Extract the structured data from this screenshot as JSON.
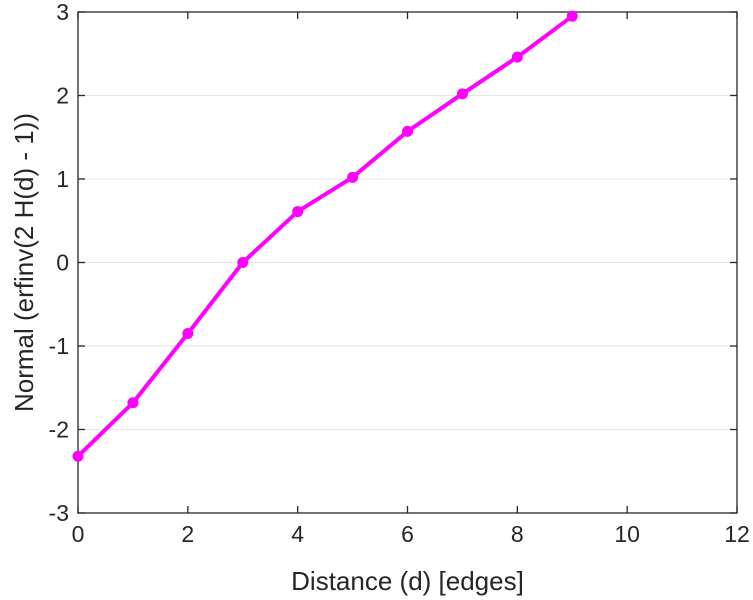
{
  "chart_data": {
    "type": "line",
    "title": "",
    "xlabel": "Distance (d) [edges]",
    "ylabel": "Normal (erfinv(2 H(d) - 1))",
    "xlim": [
      0,
      12
    ],
    "ylim": [
      -3,
      3
    ],
    "xticks": [
      0,
      2,
      4,
      6,
      8,
      10,
      12
    ],
    "yticks": [
      -3,
      -2,
      -1,
      0,
      1,
      2,
      3
    ],
    "grid": "horizontal",
    "legend": "none",
    "series": [
      {
        "color": "#ff00ff",
        "marker": "circle",
        "x": [
          0,
          1,
          2,
          3,
          4,
          5,
          6,
          7,
          8,
          9
        ],
        "y": [
          -2.32,
          -1.68,
          -0.85,
          0.0,
          0.61,
          1.02,
          1.57,
          2.02,
          2.46,
          2.95
        ]
      }
    ]
  }
}
